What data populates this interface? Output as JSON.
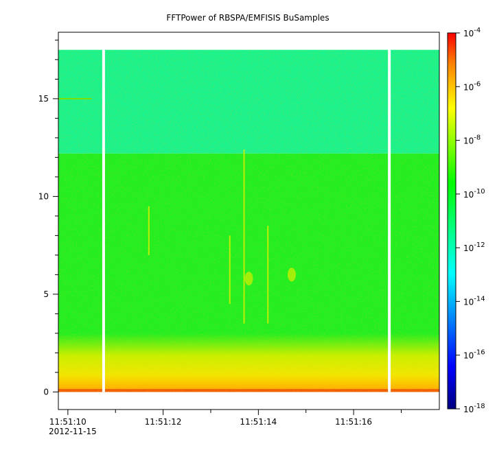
{
  "chart_data": {
    "type": "heatmap",
    "title": "FFTPower of RBSPA/EMFISIS  BuSamples",
    "xlabel": "",
    "ylabel": "",
    "x_start_label": "2012-11-15",
    "x_time_range": [
      "11:51:09.8",
      "11:51:17.8"
    ],
    "xticks": [
      {
        "t": 10,
        "label": "11:51:10",
        "major": true
      },
      {
        "t": 11,
        "label": "",
        "major": false
      },
      {
        "t": 12,
        "label": "11:51:12",
        "major": true
      },
      {
        "t": 13,
        "label": "",
        "major": false
      },
      {
        "t": 14,
        "label": "11:51:14",
        "major": true
      },
      {
        "t": 15,
        "label": "",
        "major": false
      },
      {
        "t": 16,
        "label": "11:51:16",
        "major": true
      },
      {
        "t": 17,
        "label": "",
        "major": false
      }
    ],
    "ylim": [
      -0.9,
      18.4
    ],
    "yticks": [
      0,
      5,
      10,
      15
    ],
    "y_minor_step": 1,
    "data_y_range": [
      0,
      17.5
    ],
    "data_gaps_seconds": [
      10.75,
      16.75
    ],
    "colorbar": {
      "scale": "log",
      "range": [
        1e-18,
        0.0001
      ],
      "tick_exponents": [
        -18,
        -16,
        -14,
        -12,
        -10,
        -8,
        -6,
        -4
      ]
    },
    "bands": [
      {
        "y_from": 0,
        "y_to": 0.15,
        "level": "~1e-7"
      },
      {
        "y_from": 0.15,
        "y_to": 1.0,
        "level": "~1e-8"
      },
      {
        "y_from": 1.0,
        "y_to": 2.5,
        "level": "~1e-9"
      },
      {
        "y_from": 2.5,
        "y_to": 12.2,
        "level": "~1e-10"
      },
      {
        "y_from": 12.2,
        "y_to": 17.5,
        "level": "~1e-12"
      }
    ],
    "features": [
      {
        "kind": "line",
        "t": 13.7,
        "y_from": 3.5,
        "y_to": 12.4
      },
      {
        "kind": "line",
        "t": 14.2,
        "y_from": 3.5,
        "y_to": 8.5
      },
      {
        "kind": "line",
        "t": 13.4,
        "y_from": 4.5,
        "y_to": 8.0
      },
      {
        "kind": "line",
        "t": 11.7,
        "y_from": 7.0,
        "y_to": 9.5
      },
      {
        "kind": "blob",
        "t": 14.7,
        "y": 6.0
      },
      {
        "kind": "blob",
        "t": 13.8,
        "y": 5.8
      },
      {
        "kind": "hline",
        "t_from": 9.8,
        "t_to": 10.5,
        "y": 15.0
      }
    ]
  }
}
